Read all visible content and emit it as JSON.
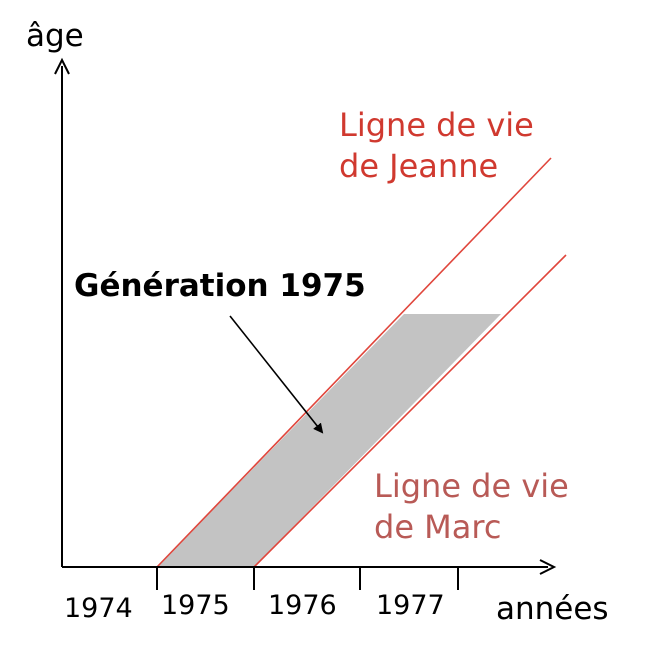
{
  "axes": {
    "y_label": "âge",
    "x_label": "années",
    "x_ticks": [
      "1974",
      "1975",
      "1976",
      "1977"
    ]
  },
  "lifelines": [
    {
      "label_line1": "Ligne de vie",
      "label_line2": "de Jeanne"
    },
    {
      "label_line1": "Ligne de vie",
      "label_line2": "de Marc"
    }
  ],
  "cohort": {
    "label": "Génération 1975"
  },
  "colors": {
    "axis": "#000000",
    "lifeline": "#e0463c",
    "jeanne_label": "#d0392f",
    "marc_label": "#b85a56",
    "cohort_fill": "#c3c3c3"
  }
}
